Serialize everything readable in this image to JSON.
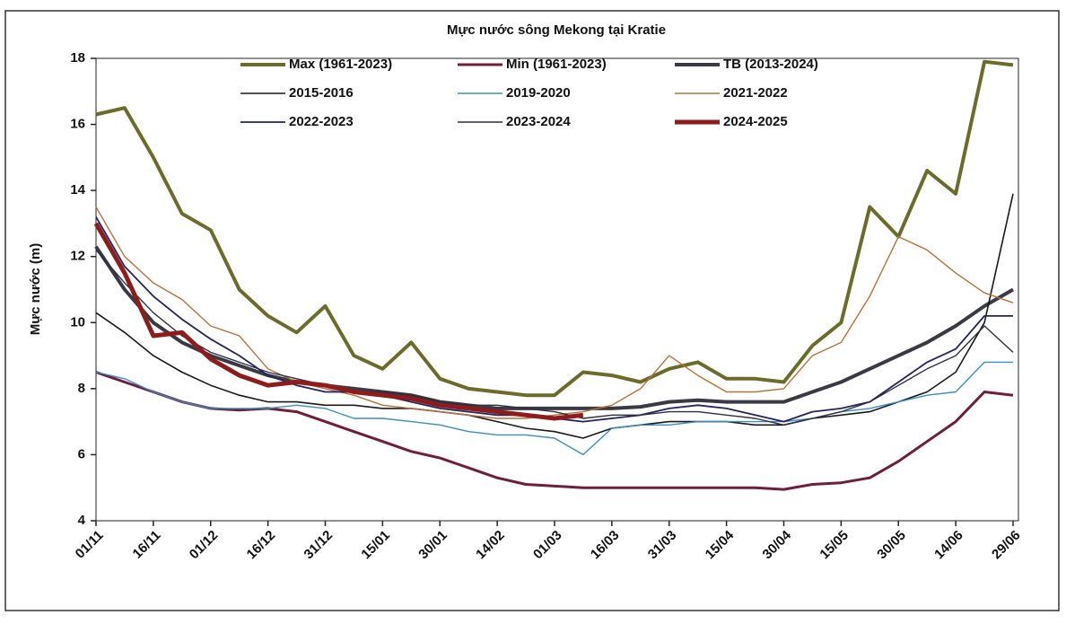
{
  "chart_data": {
    "type": "line",
    "title": "Mực nước sông Mekong tại Kratie",
    "y_label": "Mực nước (m)",
    "categories": [
      "01/11",
      null,
      "16/11",
      null,
      "01/12",
      null,
      "16/12",
      null,
      "31/12",
      null,
      "15/01",
      null,
      "30/01",
      null,
      "14/02",
      null,
      "01/03",
      null,
      "16/03",
      null,
      "31/03",
      null,
      "15/04",
      null,
      "30/04",
      null,
      "15/05",
      null,
      "30/05",
      null,
      "14/06",
      null,
      "29/06"
    ],
    "ylim": [
      4,
      18
    ],
    "yticks": [
      4,
      6,
      8,
      10,
      12,
      14,
      16,
      18
    ],
    "series": [
      {
        "name": "Max (1961-2023)",
        "color": "#6b6b2a",
        "values": [
          16.3,
          16.5,
          15,
          13.3,
          12.8,
          11,
          10.2,
          9.7,
          10.5,
          9,
          8.6,
          9.4,
          8.3,
          8.0,
          7.9,
          7.8,
          7.8,
          8.5,
          8.4,
          8.2,
          8.6,
          8.8,
          8.3,
          8.3,
          8.2,
          9.3,
          10,
          13.5,
          12.6,
          14.6,
          13.9,
          17.9,
          17.8
        ]
      },
      {
        "name": "Min (1961-2023)",
        "color": "#6e1f3a",
        "values": [
          8.5,
          8.2,
          7.9,
          7.6,
          7.4,
          7.35,
          7.4,
          7.3,
          7.0,
          6.7,
          6.4,
          6.1,
          5.9,
          5.6,
          5.3,
          5.1,
          5.05,
          5.0,
          5.0,
          5.0,
          5.0,
          5.0,
          5.0,
          5.0,
          4.95,
          5.1,
          5.15,
          5.3,
          5.8,
          6.4,
          7.0,
          7.9,
          7.8
        ]
      },
      {
        "name": "TB (2013-2024)",
        "color": "#3a3a44",
        "values": [
          12.3,
          11.0,
          10.0,
          9.4,
          9.0,
          8.7,
          8.4,
          8.2,
          8.1,
          8.0,
          7.9,
          7.8,
          7.6,
          7.5,
          7.4,
          7.4,
          7.4,
          7.4,
          7.4,
          7.45,
          7.6,
          7.65,
          7.6,
          7.6,
          7.6,
          7.9,
          8.2,
          8.6,
          9.0,
          9.4,
          9.9,
          10.5,
          11.0
        ]
      },
      {
        "name": "2015-2016",
        "color": "#1a1a1a",
        "values": [
          10.3,
          9.7,
          9.0,
          8.5,
          8.1,
          7.8,
          7.6,
          7.6,
          7.5,
          7.5,
          7.4,
          7.4,
          7.3,
          7.2,
          7.0,
          6.8,
          6.7,
          6.5,
          6.8,
          6.9,
          7.0,
          7.0,
          7.0,
          6.9,
          6.9,
          7.1,
          7.2,
          7.3,
          7.6,
          7.9,
          8.5,
          10.0,
          13.9
        ]
      },
      {
        "name": "2019-2020",
        "color": "#3a8fc0",
        "values": [
          8.5,
          8.3,
          7.9,
          7.6,
          7.4,
          7.4,
          7.4,
          7.5,
          7.4,
          7.1,
          7.1,
          7.0,
          6.9,
          6.7,
          6.6,
          6.6,
          6.5,
          6.0,
          6.8,
          6.9,
          6.9,
          7.0,
          7.0,
          7.0,
          7.0,
          7.1,
          7.3,
          7.4,
          7.6,
          7.8,
          7.9,
          8.8,
          8.8
        ]
      },
      {
        "name": "2021-2022",
        "color": "#b5733a",
        "values": [
          13.5,
          12.0,
          11.2,
          10.7,
          9.9,
          9.6,
          8.6,
          8.2,
          8.0,
          7.8,
          7.5,
          7.4,
          7.3,
          7.2,
          7.1,
          7.1,
          7.2,
          7.3,
          7.5,
          8.0,
          9.0,
          8.4,
          7.9,
          7.9,
          8.0,
          9.0,
          9.4,
          10.8,
          12.6,
          12.2,
          11.5,
          10.9,
          10.6
        ]
      },
      {
        "name": "2022-2023",
        "color": "#23235e",
        "values": [
          13.2,
          11.7,
          10.8,
          10.1,
          9.5,
          9.0,
          8.4,
          8.1,
          7.9,
          7.9,
          7.8,
          7.6,
          7.4,
          7.3,
          7.2,
          7.2,
          7.1,
          7.0,
          7.1,
          7.2,
          7.4,
          7.5,
          7.4,
          7.2,
          7.0,
          7.3,
          7.4,
          7.6,
          8.2,
          8.8,
          9.2,
          10.2,
          10.2
        ]
      },
      {
        "name": "2023-2024",
        "color": "#2e2e3e",
        "values": [
          12.2,
          11.2,
          10.3,
          9.6,
          9.1,
          8.8,
          8.5,
          8.3,
          8.1,
          7.9,
          7.9,
          7.8,
          7.6,
          7.5,
          7.5,
          7.4,
          7.3,
          7.1,
          7.2,
          7.2,
          7.3,
          7.3,
          7.2,
          7.1,
          6.9,
          7.1,
          7.3,
          7.6,
          8.1,
          8.6,
          9.0,
          9.9,
          9.1
        ]
      },
      {
        "name": "2024-2025",
        "color": "#8e1c1c",
        "values": [
          13.0,
          11.5,
          9.6,
          9.7,
          8.9,
          8.4,
          8.1,
          8.2,
          8.1,
          7.9,
          7.8,
          7.7,
          7.5,
          7.4,
          7.3,
          7.2,
          7.1,
          7.2,
          null,
          null,
          null,
          null,
          null,
          null,
          null,
          null,
          null,
          null,
          null,
          null,
          null,
          null,
          null
        ]
      }
    ]
  }
}
